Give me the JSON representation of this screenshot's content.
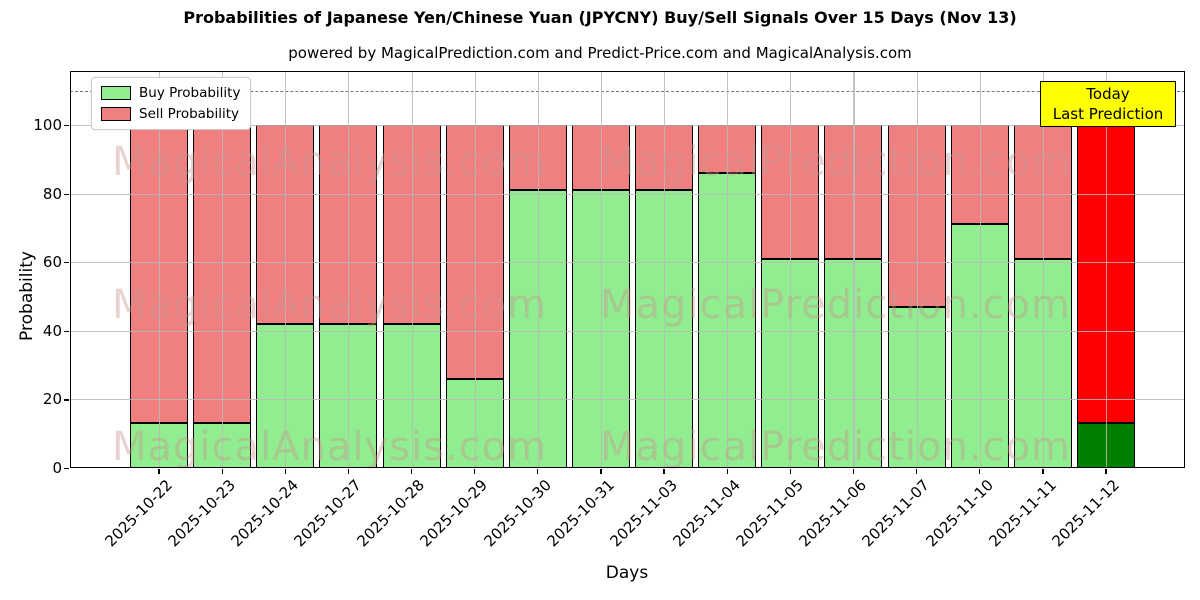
{
  "header": {
    "title": "Probabilities of Japanese Yen/Chinese Yuan (JPYCNY) Buy/Sell Signals Over 15 Days (Nov 13)",
    "subtitle": "powered by MagicalPrediction.com and Predict-Price.com and MagicalAnalysis.com"
  },
  "chart_data": {
    "type": "bar",
    "stacked": true,
    "title": "Probabilities of Japanese Yen/Chinese Yuan (JPYCNY) Buy/Sell Signals Over 15 Days (Nov 13)",
    "xlabel": "Days",
    "ylabel": "Probability",
    "ylim": [
      0,
      115.7
    ],
    "yticks": [
      0,
      20,
      40,
      60,
      80,
      100
    ],
    "grid": true,
    "legend_position": "upper left",
    "categories": [
      "2025-10-22",
      "2025-10-23",
      "2025-10-24",
      "2025-10-27",
      "2025-10-28",
      "2025-10-29",
      "2025-10-30",
      "2025-10-31",
      "2025-11-03",
      "2025-11-04",
      "2025-11-05",
      "2025-11-06",
      "2025-11-07",
      "2025-11-10",
      "2025-11-11",
      "2025-11-12"
    ],
    "series": [
      {
        "name": "Buy Probability",
        "color": "#90ee90",
        "values": [
          13,
          13,
          42,
          42,
          42,
          26,
          81,
          81,
          81,
          86,
          61,
          61,
          47,
          71,
          61,
          13
        ]
      },
      {
        "name": "Sell Probability",
        "color": "#f08080",
        "values": [
          87,
          87,
          58,
          58,
          58,
          74,
          19,
          19,
          19,
          14,
          39,
          39,
          53,
          29,
          39,
          87
        ]
      }
    ],
    "highlight_last_bar": {
      "index": 15,
      "buy_color": "#008000",
      "sell_color": "#ff0000"
    },
    "dashed_line_y": 110
  },
  "annotation_box": {
    "lines": [
      "Today",
      "Last Prediction"
    ],
    "bg_color": "#ffff00"
  },
  "watermarks": [
    "MagicalAnalysis.com",
    "MagicalPrediction.com"
  ]
}
